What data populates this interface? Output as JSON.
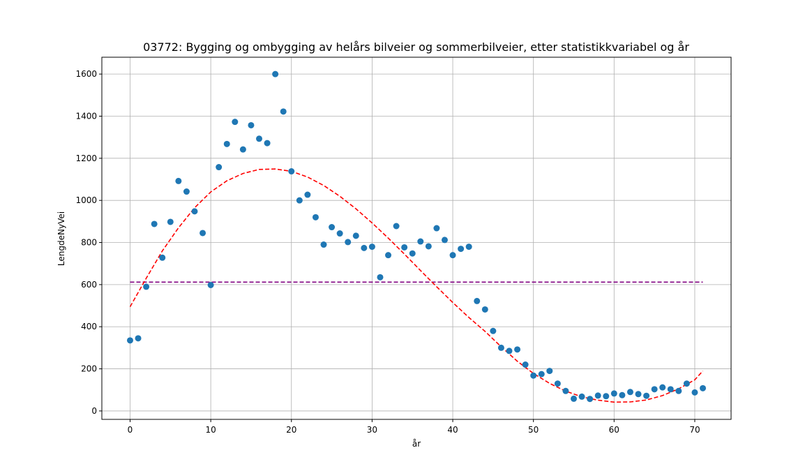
{
  "chart_data": {
    "type": "scatter",
    "title": "03772: Bygging og ombygging av helårs bilveier og sommerbilveier, etter statistikkvariabel og år",
    "xlabel": "år",
    "ylabel": "LengdeNyVei",
    "xlim": [
      -3.5,
      74.5
    ],
    "ylim": [
      -40,
      1680
    ],
    "xticks": [
      0,
      10,
      20,
      30,
      40,
      50,
      60,
      70
    ],
    "yticks": [
      0,
      200,
      400,
      600,
      800,
      1000,
      1200,
      1400,
      1600
    ],
    "grid": true,
    "colors": {
      "points": "#1f77b4",
      "trend": "#ff0000",
      "mean": "#800080"
    },
    "series": [
      {
        "type": "scatter",
        "x": [
          0,
          1,
          2,
          3,
          4,
          5,
          6,
          7,
          8,
          9,
          10,
          11,
          12,
          13,
          14,
          15,
          16,
          17,
          18,
          19,
          20,
          21,
          22,
          23,
          24,
          25,
          26,
          27,
          28,
          29,
          30,
          31,
          32,
          33,
          34,
          35,
          36,
          37,
          38,
          39,
          40,
          41,
          42,
          43,
          44,
          45,
          46,
          47,
          48,
          49,
          50,
          51,
          52,
          53,
          54,
          55,
          56,
          57,
          58,
          59,
          60,
          61,
          62,
          63,
          64,
          65,
          66,
          67,
          68,
          69,
          70,
          71
        ],
        "y": [
          335,
          345,
          590,
          888,
          728,
          898,
          1092,
          1042,
          948,
          845,
          598,
          1158,
          1268,
          1373,
          1242,
          1357,
          1293,
          1272,
          1600,
          1422,
          1138,
          1000,
          1027,
          920,
          790,
          873,
          843,
          802,
          832,
          774,
          780,
          635,
          740,
          878,
          777,
          748,
          805,
          782,
          868,
          812,
          740,
          770,
          780,
          522,
          482,
          380,
          300,
          285,
          292,
          220,
          168,
          175,
          190,
          130,
          95,
          58,
          68,
          57,
          73,
          70,
          83,
          75,
          90,
          80,
          72,
          103,
          112,
          103,
          95,
          130,
          88,
          108
        ]
      },
      {
        "type": "line",
        "style": "dashed",
        "x": [
          0,
          2,
          4,
          6,
          8,
          10,
          12,
          14,
          16,
          18,
          20,
          22,
          24,
          26,
          28,
          30,
          32,
          34,
          36,
          38,
          40,
          42,
          44,
          46,
          48,
          50,
          52,
          54,
          56,
          58,
          60,
          62,
          64,
          66,
          68,
          70,
          71
        ],
        "y": [
          495,
          630,
          760,
          870,
          965,
          1040,
          1093,
          1128,
          1147,
          1149,
          1138,
          1111,
          1071,
          1020,
          960,
          893,
          821,
          745,
          667,
          590,
          515,
          444,
          378,
          305,
          236,
          178,
          131,
          94,
          67,
          51,
          42,
          43,
          52,
          73,
          105,
          148,
          190
        ]
      },
      {
        "type": "line",
        "style": "dashed",
        "x": [
          0,
          71
        ],
        "y": [
          612,
          612
        ]
      }
    ]
  }
}
